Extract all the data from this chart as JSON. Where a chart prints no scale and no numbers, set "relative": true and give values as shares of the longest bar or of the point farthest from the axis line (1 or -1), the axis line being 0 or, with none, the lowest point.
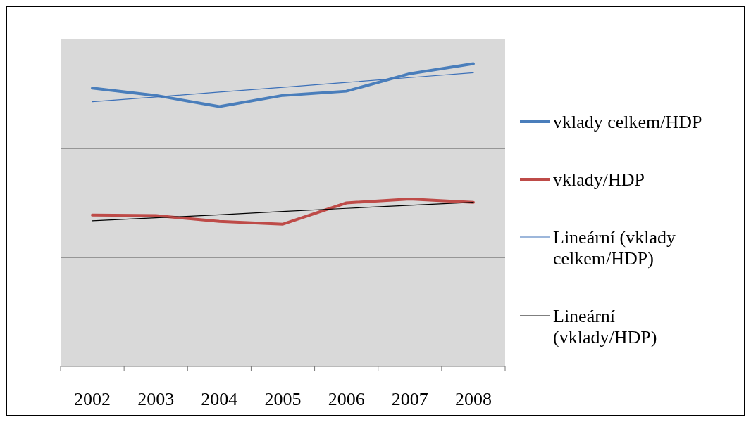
{
  "chart_data": {
    "type": "line",
    "relative": true,
    "x": [
      2002,
      2003,
      2004,
      2005,
      2006,
      2007,
      2008
    ],
    "xlim": [
      2001.5,
      2008.5
    ],
    "xticks": [
      {
        "value": 2001.5,
        "label": null
      },
      2002,
      {
        "value": 2002.5,
        "label": null
      },
      2003,
      {
        "value": 2003.5,
        "label": null
      },
      2004,
      {
        "value": 2004.5,
        "label": null
      },
      2005,
      {
        "value": 2005.5,
        "label": null
      },
      2006,
      {
        "value": 2006.5,
        "label": null
      },
      2007,
      {
        "value": 2007.5,
        "label": null
      },
      2008,
      {
        "value": 2008.5,
        "label": null
      }
    ],
    "series": [
      {
        "name": "vklady celkem/HDP",
        "color": "#4a7ebb",
        "values": [
          0.919,
          0.895,
          0.858,
          0.895,
          0.909,
          0.967,
          1
        ]
      },
      {
        "name": "vklady/HDP",
        "color": "#be4b48",
        "values": [
          0.5,
          0.498,
          0.479,
          0.47,
          0.54,
          0.553,
          0.542
        ]
      },
      {
        "name": "Lineární (vklady celkem/HDP)",
        "type": "line",
        "color": "#3c70b8",
        "values": [
          0.874,
          0.89,
          0.906,
          0.922,
          0.938,
          0.954,
          0.97
        ]
      },
      {
        "name": "Lineární (vklady/HDP)",
        "type": "line",
        "color": "#000000",
        "values": [
          0.481,
          0.491,
          0.501,
          0.512,
          0.522,
          0.532,
          0.542
        ]
      }
    ],
    "grid": true,
    "legend": "right",
    "marker": "none",
    "line_style": "solid"
  }
}
